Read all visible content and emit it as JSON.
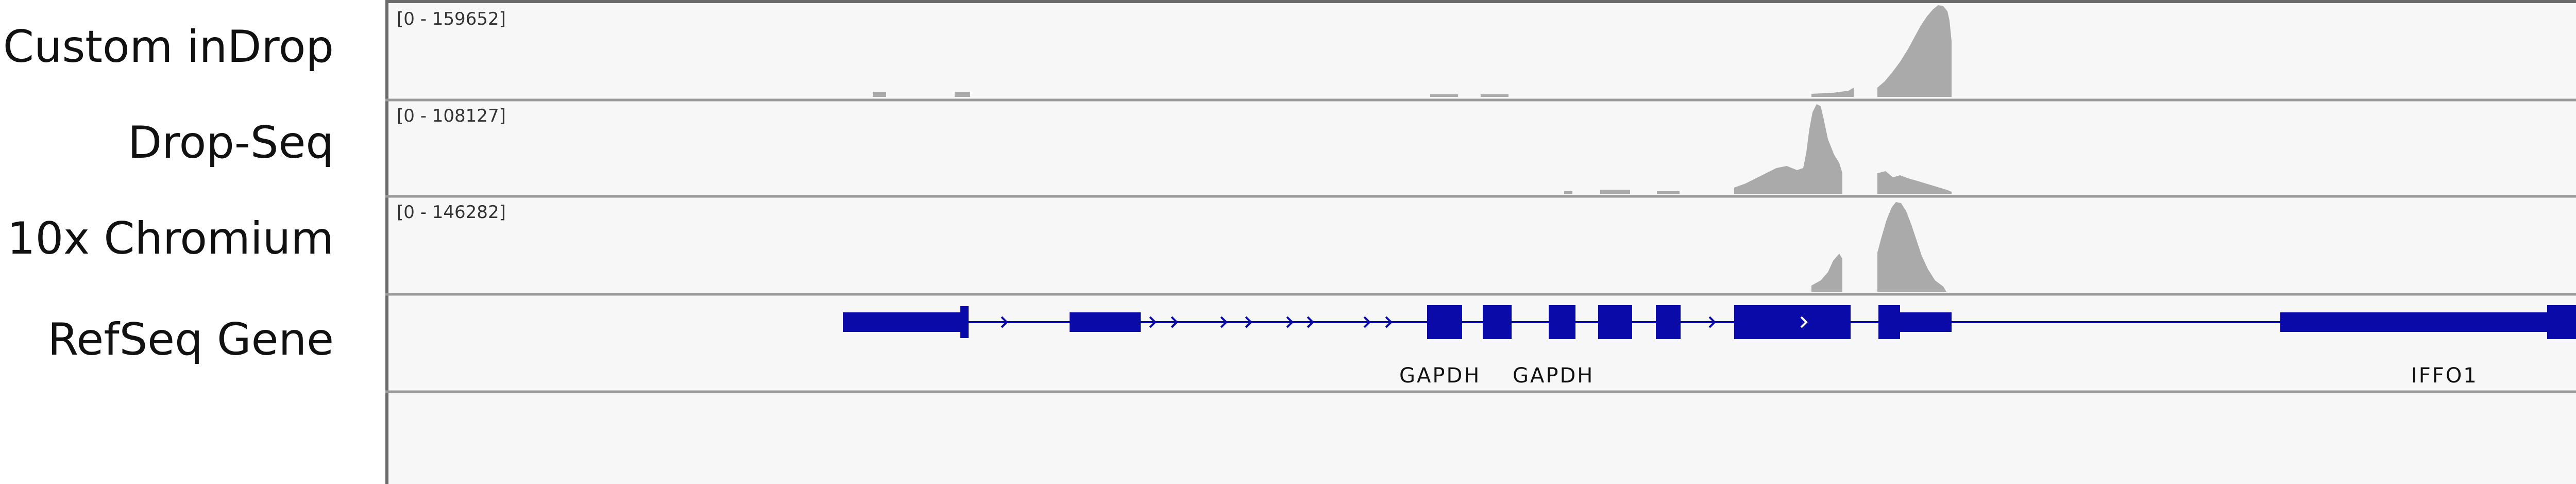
{
  "tracks": {
    "custom_indrop": {
      "label": "Custom inDrop",
      "range": "[0 - 159652]"
    },
    "drop_seq": {
      "label": "Drop-Seq",
      "range": "[0 - 108127]"
    },
    "chromium": {
      "label": "10x Chromium",
      "range": "[0 - 146282]"
    },
    "refseq": {
      "label": "RefSeq Gene"
    }
  },
  "genes": {
    "gapdh_1": "GAPDH",
    "gapdh_2": "GAPDH",
    "iffo1": "IFFO1"
  },
  "colors": {
    "coverage": "#aaaaaa",
    "gene": "#0a0aa8",
    "separator": "#9a9a9a",
    "background": "#f7f7f7"
  }
}
